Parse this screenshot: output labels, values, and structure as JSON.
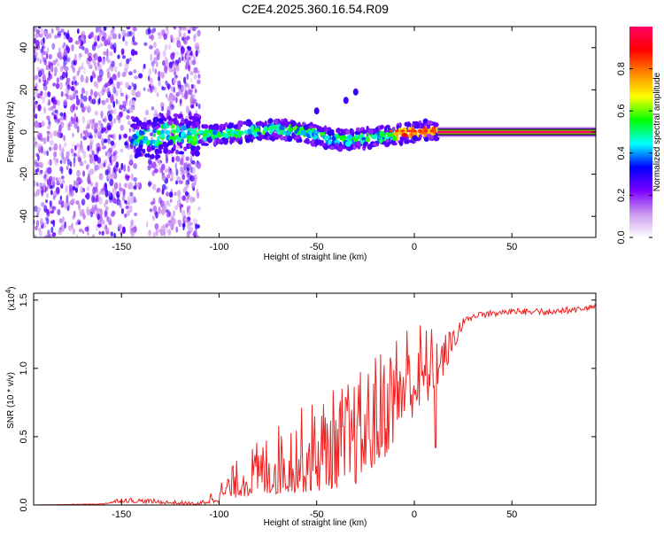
{
  "title": "C2E4.2025.360.16.54.R09",
  "chart_data": [
    {
      "type": "heatmap",
      "name": "spectrogram",
      "xlabel": "Height of straight line (km)",
      "ylabel": "Frequency (Hz)",
      "xlim": [
        -195,
        93
      ],
      "ylim": [
        -50,
        50
      ],
      "xticks": [
        -150,
        -100,
        -50,
        0,
        50
      ],
      "yticks": [
        -40,
        -20,
        0,
        20,
        40
      ],
      "colorbar": {
        "label": "Normalized spectral amplitude",
        "range": [
          0,
          1
        ],
        "ticks": [
          0.0,
          0.2,
          0.4,
          0.6,
          0.8
        ],
        "colors": [
          "#ffffff",
          "#cc99ee",
          "#7a00ff",
          "#0000ff",
          "#00ffff",
          "#00ff00",
          "#ffff00",
          "#ff8800",
          "#ff0000",
          "#ff0066"
        ]
      },
      "features": [
        {
          "label": "scattered noise",
          "x_range": [
            -195,
            -110
          ],
          "y_range": [
            -50,
            50
          ],
          "amplitude": 0.15
        },
        {
          "label": "signal band",
          "x_range": [
            -145,
            12
          ],
          "center_freq": 0,
          "amplitude": 0.5
        },
        {
          "label": "steady tone",
          "x_range": [
            12,
            93
          ],
          "freq": 0,
          "amplitude": 1.0
        },
        {
          "label": "side blips",
          "points": [
            [
              -50,
              10
            ],
            [
              -35,
              15
            ],
            [
              -30,
              19
            ]
          ]
        }
      ]
    },
    {
      "type": "line",
      "name": "snr",
      "xlabel": "Height of straight line (km)",
      "ylabel": "SNR (10 * v/v)",
      "multiplier": "(x10^4)",
      "multiplier_base": "(x10",
      "multiplier_exp": "4",
      "multiplier_close": ")",
      "xlim": [
        -195,
        93
      ],
      "ylim": [
        0,
        1.55
      ],
      "xticks": [
        -150,
        -100,
        -50,
        0,
        50
      ],
      "yticks": [
        0.0,
        0.5,
        1.0,
        1.5
      ],
      "series": [
        {
          "name": "SNR",
          "color": "#ee2222",
          "envelope_x": [
            -195,
            -160,
            -150,
            -110,
            -100,
            -90,
            -70,
            -50,
            -30,
            -15,
            -5,
            5,
            15,
            25,
            35,
            50,
            70,
            93
          ],
          "envelope_y": [
            0.0,
            0.01,
            0.06,
            0.02,
            0.16,
            0.35,
            0.6,
            0.8,
            0.95,
            1.2,
            1.4,
            1.35,
            1.25,
            1.38,
            1.42,
            1.44,
            1.44,
            1.47
          ],
          "baseline_y": [
            0.0,
            0.005,
            0.02,
            0.0,
            0.02,
            0.06,
            0.08,
            0.1,
            0.15,
            0.35,
            0.6,
            0.7,
            0.95,
            1.3,
            1.38,
            1.4,
            1.42,
            1.43
          ]
        }
      ]
    }
  ]
}
